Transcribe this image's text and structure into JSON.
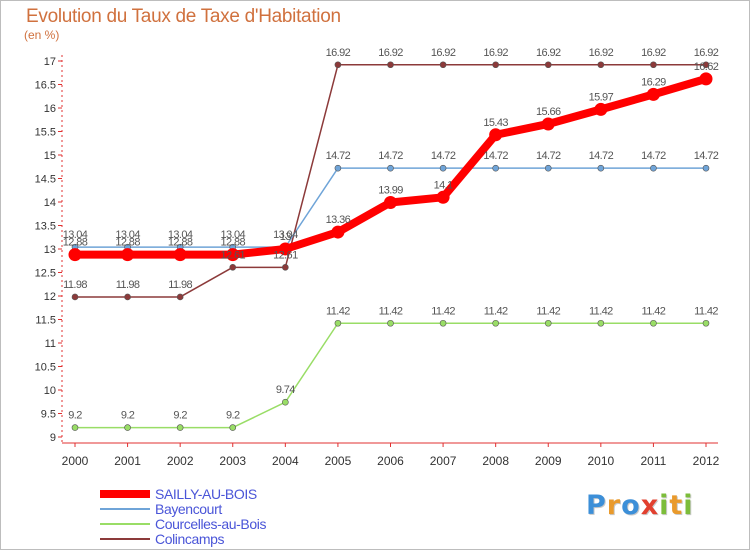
{
  "header": {
    "title": "Evolution du Taux de Taxe d'Habitation",
    "unit": "(en %)"
  },
  "logo": {
    "letters": [
      "P",
      "r",
      "o",
      "x",
      "i",
      "t",
      "i"
    ],
    "colors": [
      "#3c8fd8",
      "#e99a2c",
      "#3c8fd8",
      "#e2402f",
      "#7cbd3a",
      "#e99a2c",
      "#7cbd3a"
    ]
  },
  "chart_data": {
    "type": "line",
    "x": [
      "2000",
      "2001",
      "2002",
      "2003",
      "2004",
      "2005",
      "2006",
      "2007",
      "2008",
      "2009",
      "2010",
      "2011",
      "2012"
    ],
    "ylim": [
      9,
      17
    ],
    "yticks": [
      "9",
      "9.5",
      "10",
      "10.5",
      "11",
      "11.5",
      "12",
      "12.5",
      "13",
      "13.5",
      "14",
      "14.5",
      "15",
      "15.5",
      "16",
      "16.5",
      "17"
    ],
    "grid": false,
    "legend_position": "bottom-left",
    "series": [
      {
        "name": "SAILLY-AU-BOIS",
        "color": "#ff0000",
        "values": [
          12.88,
          12.88,
          12.88,
          12.88,
          13.0,
          13.36,
          13.99,
          14.1,
          15.43,
          15.66,
          15.97,
          16.29,
          16.62
        ],
        "labels": [
          "12.88",
          "12.88",
          "12.88",
          "12.88",
          "13",
          "13.36",
          "13.99",
          "14.1",
          "15.43",
          "15.66",
          "15.97",
          "16.29",
          "16.62"
        ]
      },
      {
        "name": "Bayencourt",
        "color": "#6fa4d8",
        "values": [
          13.04,
          13.04,
          13.04,
          13.04,
          13.04,
          14.72,
          14.72,
          14.72,
          14.72,
          14.72,
          14.72,
          14.72,
          14.72
        ],
        "labels": [
          "13.04",
          "13.04",
          "13.04",
          "13.04",
          "13.04",
          "14.72",
          "14.72",
          "14.72",
          "14.72",
          "14.72",
          "14.72",
          "14.72",
          "14.72"
        ]
      },
      {
        "name": "Courcelles-au-Bois",
        "color": "#99dd66",
        "values": [
          9.2,
          9.2,
          9.2,
          9.2,
          9.74,
          11.42,
          11.42,
          11.42,
          11.42,
          11.42,
          11.42,
          11.42,
          11.42
        ],
        "labels": [
          "9.2",
          "9.2",
          "9.2",
          "9.2",
          "9.74",
          "11.42",
          "11.42",
          "11.42",
          "11.42",
          "11.42",
          "11.42",
          "11.42",
          "11.42"
        ]
      },
      {
        "name": "Colincamps",
        "color": "#8c3a3a",
        "values": [
          11.98,
          11.98,
          11.98,
          12.61,
          12.61,
          16.92,
          16.92,
          16.92,
          16.92,
          16.92,
          16.92,
          16.92,
          16.92
        ],
        "labels": [
          "11.98",
          "11.98",
          "11.98",
          "12.61",
          "12.61",
          "16.92",
          "16.92",
          "16.92",
          "16.92",
          "16.92",
          "16.92",
          "16.92",
          "16.92"
        ]
      }
    ]
  }
}
